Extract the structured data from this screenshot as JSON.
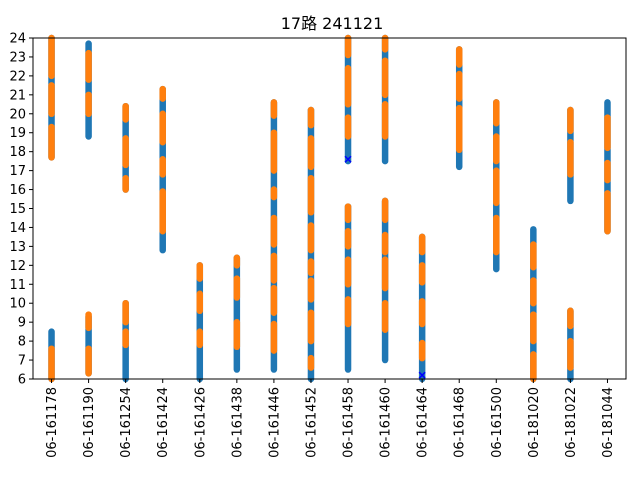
{
  "chart_data": {
    "type": "scatter",
    "title": "17路  241121",
    "xlabel": "",
    "ylabel": "",
    "ylim": [
      6,
      24
    ],
    "yticks": [
      6,
      7,
      8,
      9,
      10,
      11,
      12,
      13,
      14,
      15,
      16,
      17,
      18,
      19,
      20,
      21,
      22,
      23,
      24
    ],
    "grid": false,
    "colors": {
      "blue": "#1f77b4",
      "orange": "#ff7f0e",
      "marker": "#0000ff"
    },
    "categories": [
      "06-161178",
      "06-161190",
      "06-161254",
      "06-161424",
      "06-161426",
      "06-161438",
      "06-161446",
      "06-161452",
      "06-161458",
      "06-161460",
      "06-161464",
      "06-161468",
      "06-161500",
      "06-181020",
      "06-181022",
      "06-181044"
    ],
    "series": [
      {
        "color": "blue",
        "ranges": [
          [
            [
              6.0,
              8.5
            ],
            [
              17.7,
              24.0
            ]
          ],
          [
            [
              6.3,
              9.3
            ],
            [
              18.8,
              23.7
            ]
          ],
          [
            [
              6.0,
              10.0
            ],
            [
              16.0,
              20.4
            ]
          ],
          [
            [
              12.8,
              21.3
            ]
          ],
          [
            [
              6.0,
              12.0
            ]
          ],
          [
            [
              6.5,
              12.4
            ]
          ],
          [
            [
              6.5,
              20.6
            ]
          ],
          [
            [
              6.0,
              20.2
            ]
          ],
          [
            [
              6.5,
              15.1
            ],
            [
              17.5,
              24.0
            ]
          ],
          [
            [
              7.0,
              15.4
            ],
            [
              17.5,
              24.0
            ]
          ],
          [
            [
              6.0,
              13.5
            ]
          ],
          [
            [
              17.2,
              23.4
            ]
          ],
          [
            [
              11.8,
              20.6
            ]
          ],
          [
            [
              6.0,
              13.9
            ]
          ],
          [
            [
              6.0,
              9.6
            ],
            [
              15.4,
              20.2
            ]
          ],
          [
            [
              13.8,
              20.6
            ]
          ]
        ]
      },
      {
        "color": "orange",
        "ranges": [
          [
            [
              6.0,
              7.6
            ],
            [
              17.7,
              19.3
            ],
            [
              20.0,
              21.5
            ],
            [
              22.0,
              24.0
            ]
          ],
          [
            [
              6.3,
              7.6
            ],
            [
              8.7,
              9.4
            ],
            [
              20.0,
              21.0
            ],
            [
              21.8,
              23.2
            ]
          ],
          [
            [
              7.8,
              8.5
            ],
            [
              9.0,
              10.0
            ],
            [
              16.0,
              16.6
            ],
            [
              17.3,
              18.7
            ],
            [
              19.7,
              20.4
            ]
          ],
          [
            [
              13.8,
              15.9
            ],
            [
              16.8,
              17.6
            ],
            [
              18.5,
              20.0
            ],
            [
              20.8,
              21.3
            ]
          ],
          [
            [
              7.8,
              8.5
            ],
            [
              9.6,
              10.5
            ],
            [
              11.3,
              12.0
            ]
          ],
          [
            [
              7.7,
              9.0
            ],
            [
              10.3,
              11.3
            ],
            [
              12.0,
              12.4
            ]
          ],
          [
            [
              7.5,
              8.9
            ],
            [
              9.5,
              10.8
            ],
            [
              11.2,
              12.5
            ],
            [
              13.1,
              14.5
            ],
            [
              15.6,
              16.0
            ],
            [
              17.0,
              19.0
            ],
            [
              19.9,
              20.6
            ]
          ],
          [
            [
              6.6,
              7.1
            ],
            [
              8.0,
              9.5
            ],
            [
              10.2,
              11.2
            ],
            [
              11.6,
              12.2
            ],
            [
              12.8,
              14.1
            ],
            [
              14.8,
              16.6
            ],
            [
              17.2,
              18.7
            ],
            [
              19.4,
              20.2
            ]
          ],
          [
            [
              8.9,
              10.2
            ],
            [
              11.0,
              12.3
            ],
            [
              13.0,
              13.8
            ],
            [
              14.4,
              15.1
            ],
            [
              18.8,
              19.8
            ],
            [
              20.5,
              22.4
            ],
            [
              23.1,
              24.0
            ]
          ],
          [
            [
              8.6,
              10.0
            ],
            [
              10.8,
              12.3
            ],
            [
              12.7,
              13.6
            ],
            [
              14.4,
              15.4
            ],
            [
              18.8,
              20.5
            ],
            [
              21.0,
              22.8
            ],
            [
              23.4,
              24.0
            ]
          ],
          [
            [
              7.1,
              7.9
            ],
            [
              8.9,
              10.1
            ],
            [
              11.1,
              12.0
            ],
            [
              12.7,
              13.5
            ]
          ],
          [
            [
              18.1,
              20.3
            ],
            [
              20.8,
              22.1
            ],
            [
              22.6,
              23.4
            ]
          ],
          [
            [
              12.7,
              14.5
            ],
            [
              15.3,
              17.0
            ],
            [
              17.5,
              18.8
            ],
            [
              19.5,
              20.6
            ]
          ],
          [
            [
              6.0,
              7.3
            ],
            [
              8.0,
              9.4
            ],
            [
              10.0,
              11.2
            ],
            [
              11.9,
              13.1
            ]
          ],
          [
            [
              6.6,
              8.0
            ],
            [
              8.8,
              9.6
            ],
            [
              16.8,
              18.5
            ],
            [
              19.1,
              20.2
            ]
          ],
          [
            [
              13.8,
              15.8
            ],
            [
              16.5,
              17.4
            ],
            [
              18.2,
              19.8
            ]
          ]
        ]
      }
    ],
    "markers": [
      {
        "category": "06-161458",
        "y": 17.6,
        "color": "marker"
      },
      {
        "category": "06-161464",
        "y": 6.2,
        "color": "marker"
      }
    ]
  }
}
